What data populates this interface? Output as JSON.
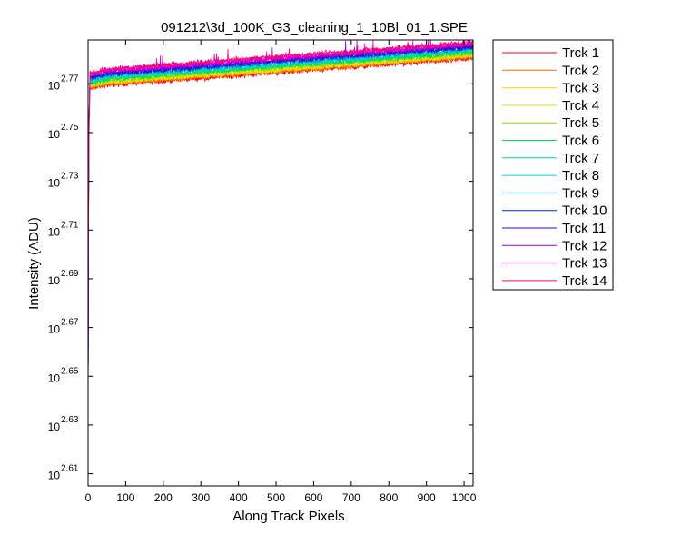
{
  "chart_data": {
    "type": "line",
    "title": "091212\\3d_100K_G3_cleaning_1_10Bl_01_1.SPE",
    "xlabel": "Along Track Pixels",
    "ylabel": "Intensity (ADU)",
    "xlim": [
      0,
      1024
    ],
    "ylim": [
      2.605,
      2.788
    ],
    "yscale": "log10",
    "x_ticks": [
      0,
      100,
      200,
      300,
      400,
      500,
      600,
      700,
      800,
      900,
      1000
    ],
    "y_ticks": [
      {
        "base": "10",
        "exp": "2.61",
        "value": 2.61
      },
      {
        "base": "10",
        "exp": "2.63",
        "value": 2.63
      },
      {
        "base": "10",
        "exp": "2.65",
        "value": 2.65
      },
      {
        "base": "10",
        "exp": "2.67",
        "value": 2.67
      },
      {
        "base": "10",
        "exp": "2.69",
        "value": 2.69
      },
      {
        "base": "10",
        "exp": "2.71",
        "value": 2.71
      },
      {
        "base": "10",
        "exp": "2.73",
        "value": 2.73
      },
      {
        "base": "10",
        "exp": "2.75",
        "value": 2.75
      },
      {
        "base": "10",
        "exp": "2.77",
        "value": 2.77
      }
    ],
    "legend_position": "outside-right",
    "grid": false,
    "series": [
      {
        "name": "Trck 1",
        "color": "#ff0000",
        "x": [
          0,
          2,
          5,
          50,
          1024
        ],
        "y": [
          2.638,
          2.745,
          2.768,
          2.7695,
          2.7805
        ]
      },
      {
        "name": "Trck 2",
        "color": "#ff6a00",
        "x": [
          0,
          2,
          5,
          50,
          1024
        ],
        "y": [
          2.638,
          2.746,
          2.7685,
          2.77,
          2.781
        ]
      },
      {
        "name": "Trck 3",
        "color": "#ffd400",
        "x": [
          0,
          2,
          5,
          50,
          1024
        ],
        "y": [
          2.638,
          2.746,
          2.769,
          2.7705,
          2.7815
        ]
      },
      {
        "name": "Trck 4",
        "color": "#d4e600",
        "x": [
          0,
          2,
          5,
          50,
          1024
        ],
        "y": [
          2.638,
          2.747,
          2.7695,
          2.771,
          2.782
        ]
      },
      {
        "name": "Trck 5",
        "color": "#7fe000",
        "x": [
          0,
          2,
          5,
          50,
          1024
        ],
        "y": [
          2.638,
          2.747,
          2.77,
          2.7715,
          2.7825
        ]
      },
      {
        "name": "Trck 6",
        "color": "#00e04a",
        "x": [
          0,
          2,
          5,
          50,
          1024
        ],
        "y": [
          2.638,
          2.748,
          2.7705,
          2.772,
          2.783
        ]
      },
      {
        "name": "Trck 7",
        "color": "#00d89a",
        "x": [
          0,
          2,
          5,
          50,
          1024
        ],
        "y": [
          2.638,
          2.748,
          2.771,
          2.7725,
          2.7835
        ]
      },
      {
        "name": "Trck 8",
        "color": "#00d6d6",
        "x": [
          0,
          2,
          5,
          50,
          1024
        ],
        "y": [
          2.638,
          2.749,
          2.7715,
          2.773,
          2.784
        ]
      },
      {
        "name": "Trck 9",
        "color": "#0096d6",
        "x": [
          0,
          2,
          5,
          50,
          1024
        ],
        "y": [
          2.638,
          2.749,
          2.772,
          2.7735,
          2.7845
        ]
      },
      {
        "name": "Trck 10",
        "color": "#0028e0",
        "x": [
          0,
          2,
          5,
          50,
          1024
        ],
        "y": [
          2.638,
          2.75,
          2.7725,
          2.774,
          2.785
        ]
      },
      {
        "name": "Trck 11",
        "color": "#4a00c8",
        "x": [
          0,
          2,
          5,
          50,
          1024
        ],
        "y": [
          2.638,
          2.75,
          2.773,
          2.7745,
          2.7855
        ]
      },
      {
        "name": "Trck 12",
        "color": "#9a00e0",
        "x": [
          0,
          2,
          5,
          50,
          1024
        ],
        "y": [
          2.638,
          2.751,
          2.7735,
          2.775,
          2.786
        ]
      },
      {
        "name": "Trck 13",
        "color": "#e000e0",
        "x": [
          0,
          2,
          5,
          50,
          1024
        ],
        "y": [
          2.638,
          2.751,
          2.774,
          2.7755,
          2.7865
        ]
      },
      {
        "name": "Trck 14",
        "color": "#ff0070",
        "x": [
          0,
          2,
          5,
          50,
          1024
        ],
        "y": [
          2.638,
          2.752,
          2.7745,
          2.776,
          2.787
        ]
      }
    ]
  }
}
